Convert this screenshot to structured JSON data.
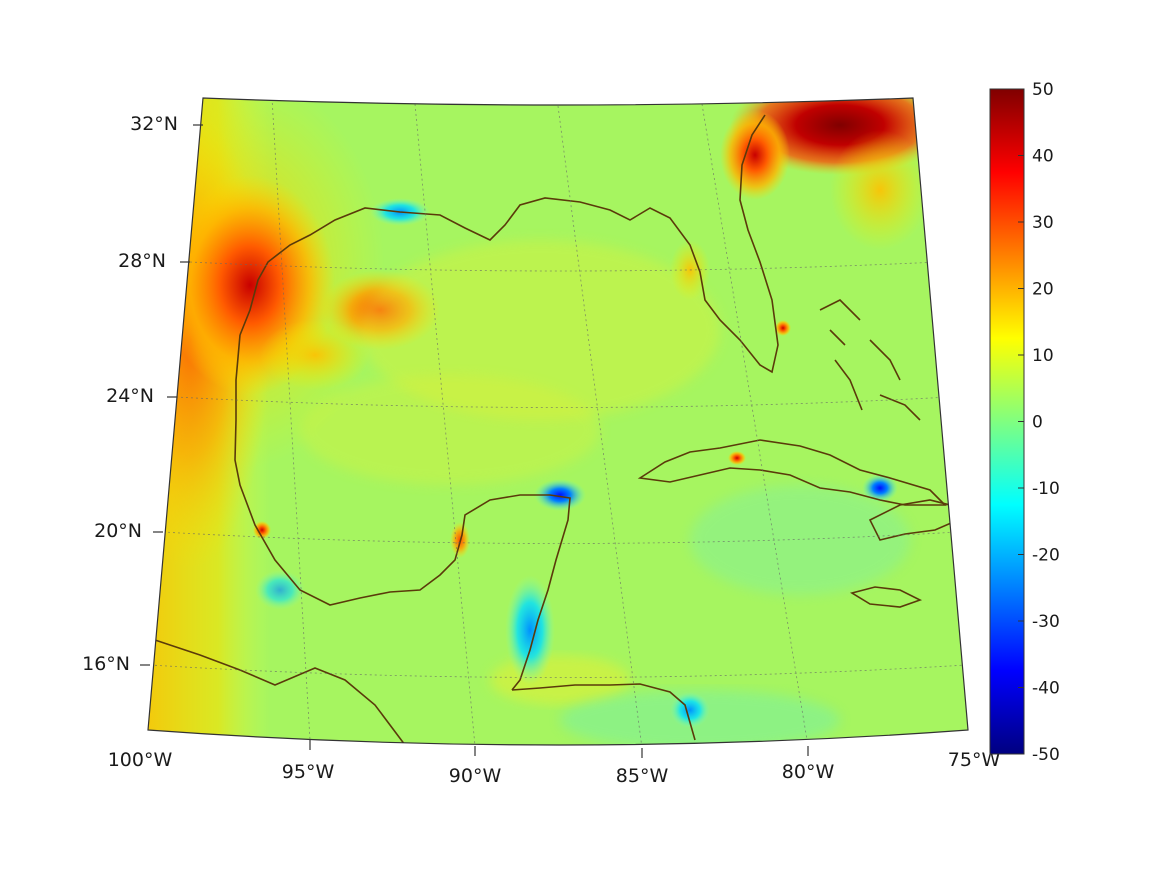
{
  "map": {
    "projection": "conic",
    "extent": {
      "lon": [
        -100,
        -75
      ],
      "lat": [
        14,
        32
      ]
    },
    "graticule": "dotted",
    "longitude_labels": [
      "100°W",
      "95°W",
      "90°W",
      "85°W",
      "80°W",
      "75°W"
    ],
    "latitude_labels": [
      "16°N",
      "20°N",
      "24°N",
      "28°N",
      "32°N"
    ],
    "coastline_color": "#5a3a0a",
    "colormap": "jet"
  },
  "colorbar": {
    "min": -50,
    "max": 50,
    "ticks": [
      "50",
      "40",
      "30",
      "20",
      "10",
      "0",
      "-10",
      "-20",
      "-30",
      "-40",
      "-50"
    ]
  }
}
